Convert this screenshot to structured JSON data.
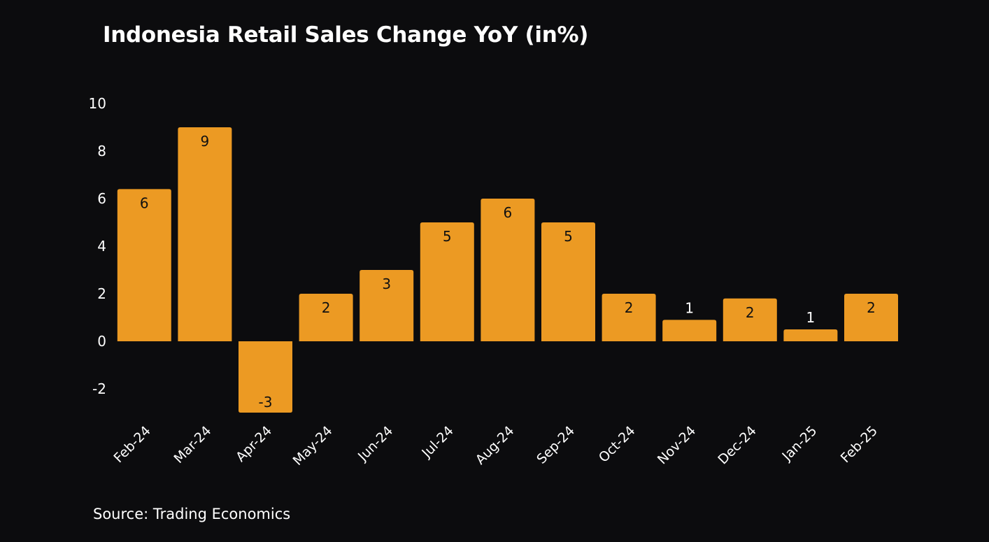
{
  "chart_data": {
    "type": "bar",
    "title": "Indonesia Retail Sales Change YoY (in%)",
    "xlabel": "",
    "ylabel": "",
    "ylim": [
      -3,
      10
    ],
    "yticks": [
      -2,
      0,
      2,
      4,
      6,
      8,
      10
    ],
    "ytick_labels": [
      "-2",
      "0",
      "2",
      "4",
      "6",
      "8",
      "10"
    ],
    "grid": false,
    "legend": "none",
    "categories": [
      "Feb-24",
      "Mar-24",
      "Apr-24",
      "May-24",
      "Jun-24",
      "Jul-24",
      "Aug-24",
      "Sep-24",
      "Oct-24",
      "Nov-24",
      "Dec-24",
      "Jan-25",
      "Feb-25"
    ],
    "values": [
      6.4,
      9.0,
      -3.0,
      2.0,
      3.0,
      5.0,
      6.0,
      5.0,
      2.0,
      0.9,
      1.8,
      0.5,
      2.0
    ],
    "data_labels": [
      "6",
      "9",
      "-3",
      "2",
      "3",
      "5",
      "6",
      "5",
      "2",
      "1",
      "2",
      "1",
      "2"
    ],
    "bar_color": "#ec9a23",
    "background_color": "#0c0c0e",
    "text_color": "#ffffff",
    "label_color": "#111111",
    "source": "Source: Trading Economics"
  }
}
